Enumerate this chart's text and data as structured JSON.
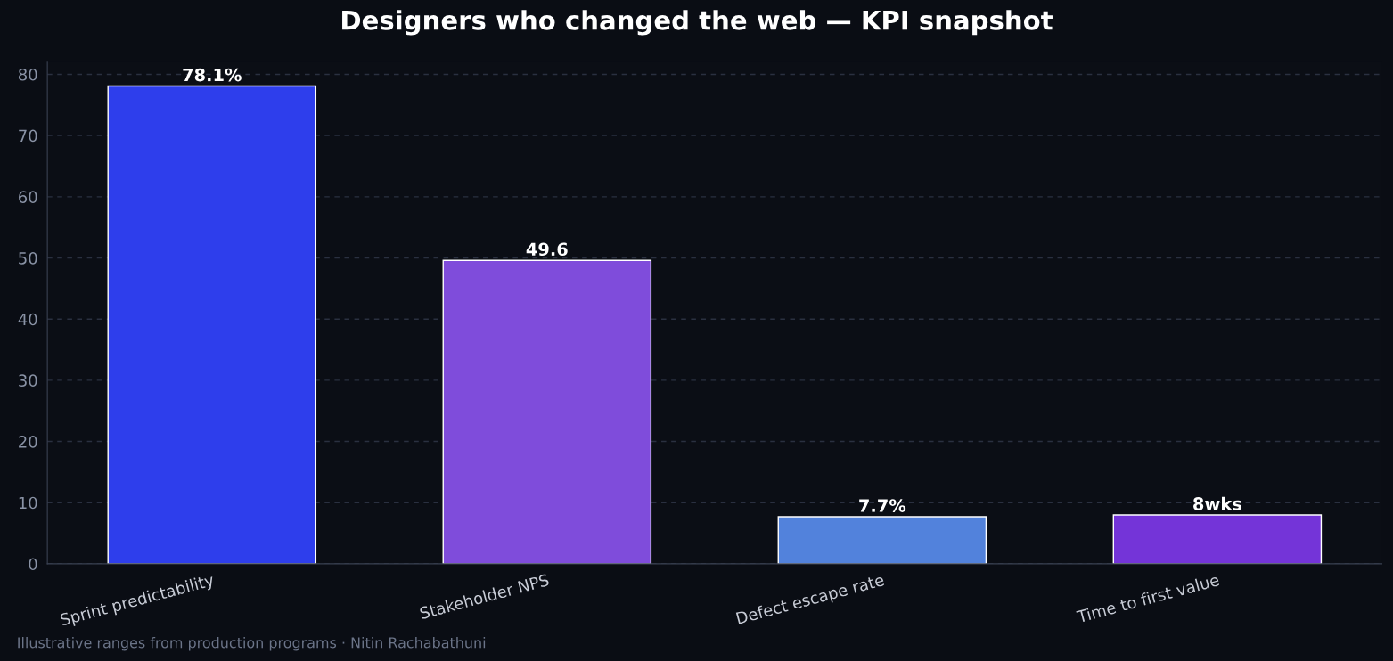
{
  "chart_data": {
    "type": "bar",
    "title": "Designers who changed the web — KPI snapshot",
    "categories": [
      "Sprint predictability",
      "Stakeholder NPS",
      "Defect escape rate",
      "Time to first value"
    ],
    "values": [
      78.1,
      49.6,
      7.7,
      8
    ],
    "colors": [
      "#2e3eec",
      "#7f4cdb",
      "#5282dc",
      "#7434d8"
    ],
    "value_labels": [
      "78.1%",
      "49.6",
      "7.7%",
      "8wks"
    ],
    "ylim": [
      0,
      82
    ],
    "yticks": [
      0,
      10,
      20,
      30,
      40,
      50,
      60,
      70,
      80
    ],
    "grid": "y",
    "annotations": [
      "Illustrative ranges from production programs · Nitin Rachabathuni"
    ]
  }
}
